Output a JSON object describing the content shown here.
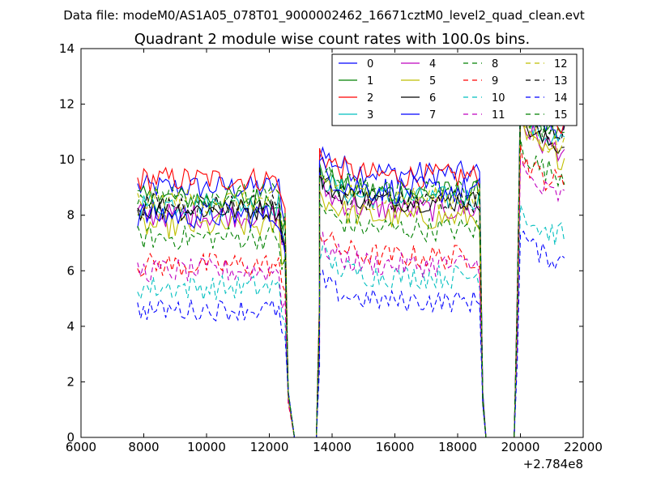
{
  "chart_data": {
    "type": "line",
    "suptitle": "Data file: modeM0/AS1A05_078T01_9000002462_16671cztM0_level2_quad_clean.evt",
    "title": "Quadrant 2 module wise count rates with 100.0s bins.",
    "xlabel": "",
    "ylabel": "",
    "x_offset_label": "+2.784e8",
    "xlim": [
      6000,
      22000
    ],
    "ylim": [
      0,
      14
    ],
    "xticks": [
      6000,
      8000,
      10000,
      12000,
      14000,
      16000,
      18000,
      20000,
      22000
    ],
    "yticks": [
      0,
      2,
      4,
      6,
      8,
      10,
      12,
      14
    ],
    "grid": false,
    "legend_position": "top-right",
    "bin_width_s": 100,
    "segments": [
      {
        "start": 7800,
        "end": 12500
      },
      {
        "start": 13600,
        "end": 18700
      },
      {
        "start": 20000,
        "end": 21400
      }
    ],
    "gaps": [
      {
        "start": 12800,
        "end": 13500
      },
      {
        "start": 18900,
        "end": 19800
      }
    ],
    "series": [
      {
        "name": "0",
        "color": "#0000ff",
        "dash": "",
        "levels": [
          9.0,
          9.5,
          11.0
        ],
        "noise": 0.45
      },
      {
        "name": "1",
        "color": "#008000",
        "dash": "",
        "levels": [
          8.6,
          8.8,
          10.8
        ],
        "noise": 0.45
      },
      {
        "name": "2",
        "color": "#ff0000",
        "dash": "",
        "levels": [
          9.3,
          9.4,
          11.1
        ],
        "noise": 0.45
      },
      {
        "name": "3",
        "color": "#00bfbf",
        "dash": "",
        "levels": [
          8.4,
          8.6,
          10.6
        ],
        "noise": 0.45
      },
      {
        "name": "4",
        "color": "#bf00bf",
        "dash": "",
        "levels": [
          8.0,
          8.2,
          10.3
        ],
        "noise": 0.45
      },
      {
        "name": "5",
        "color": "#bfbf00",
        "dash": "",
        "levels": [
          7.6,
          7.9,
          10.0
        ],
        "noise": 0.45
      },
      {
        "name": "6",
        "color": "#000000",
        "dash": "",
        "levels": [
          8.2,
          8.5,
          10.4
        ],
        "noise": 0.4
      },
      {
        "name": "7",
        "color": "#0000ff",
        "dash": "",
        "levels": [
          8.0,
          8.9,
          11.8
        ],
        "noise": 0.5
      },
      {
        "name": "8",
        "color": "#008000",
        "dash": "6,4",
        "levels": [
          7.2,
          7.5,
          9.4
        ],
        "noise": 0.45
      },
      {
        "name": "9",
        "color": "#ff0000",
        "dash": "6,4",
        "levels": [
          6.2,
          6.5,
          9.1
        ],
        "noise": 0.45
      },
      {
        "name": "10",
        "color": "#00bfbf",
        "dash": "6,4",
        "levels": [
          5.4,
          5.8,
          7.2
        ],
        "noise": 0.45
      },
      {
        "name": "11",
        "color": "#bf00bf",
        "dash": "6,4",
        "levels": [
          6.0,
          6.2,
          8.6
        ],
        "noise": 0.45
      },
      {
        "name": "12",
        "color": "#bfbf00",
        "dash": "6,4",
        "levels": [
          8.5,
          8.6,
          10.4
        ],
        "noise": 0.45
      },
      {
        "name": "13",
        "color": "#000000",
        "dash": "6,4",
        "levels": [
          8.4,
          8.5,
          10.9
        ],
        "noise": 0.4
      },
      {
        "name": "14",
        "color": "#0000ff",
        "dash": "6,4",
        "levels": [
          4.6,
          4.9,
          6.3
        ],
        "noise": 0.4
      },
      {
        "name": "15",
        "color": "#008000",
        "dash": "6,4",
        "levels": [
          8.7,
          8.9,
          10.9
        ],
        "noise": 0.45
      }
    ]
  }
}
